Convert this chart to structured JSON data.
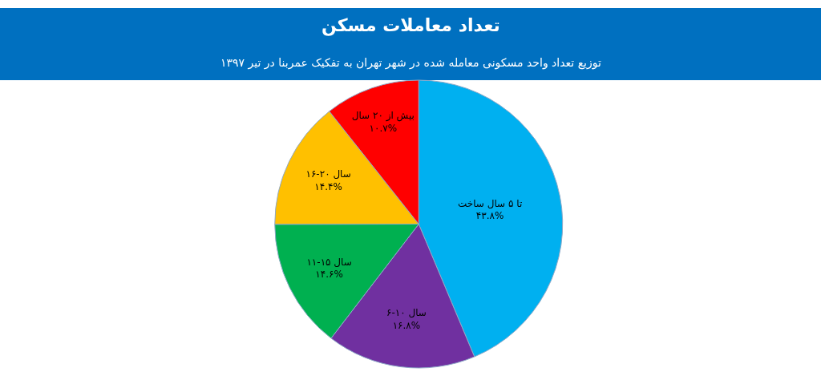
{
  "chart_data": {
    "type": "pie",
    "title": "تعداد معاملات مسکن",
    "subtitle": "توزیع تعداد واحد مسکونی معامله شده در شهر تهران به تفکیک عمربنا در تیر ۱۳۹۷",
    "categories": [
      "تا ۵ سال ساخت",
      "۶-۱۰ سال",
      "۱۱-۱۵ سال",
      "۱۶-۲۰ سال",
      "بیش از ۲۰ سال"
    ],
    "values": [
      43.8,
      16.8,
      14.6,
      14.4,
      10.7
    ],
    "value_labels": [
      "۴۳.۸%",
      "۱۶.۸%",
      "۱۴.۶%",
      "۱۴.۴%",
      "۱۰.۷%"
    ],
    "colors": [
      "#00b0f0",
      "#7030a0",
      "#00b050",
      "#ffc000",
      "#ff0000"
    ],
    "legend": false
  }
}
